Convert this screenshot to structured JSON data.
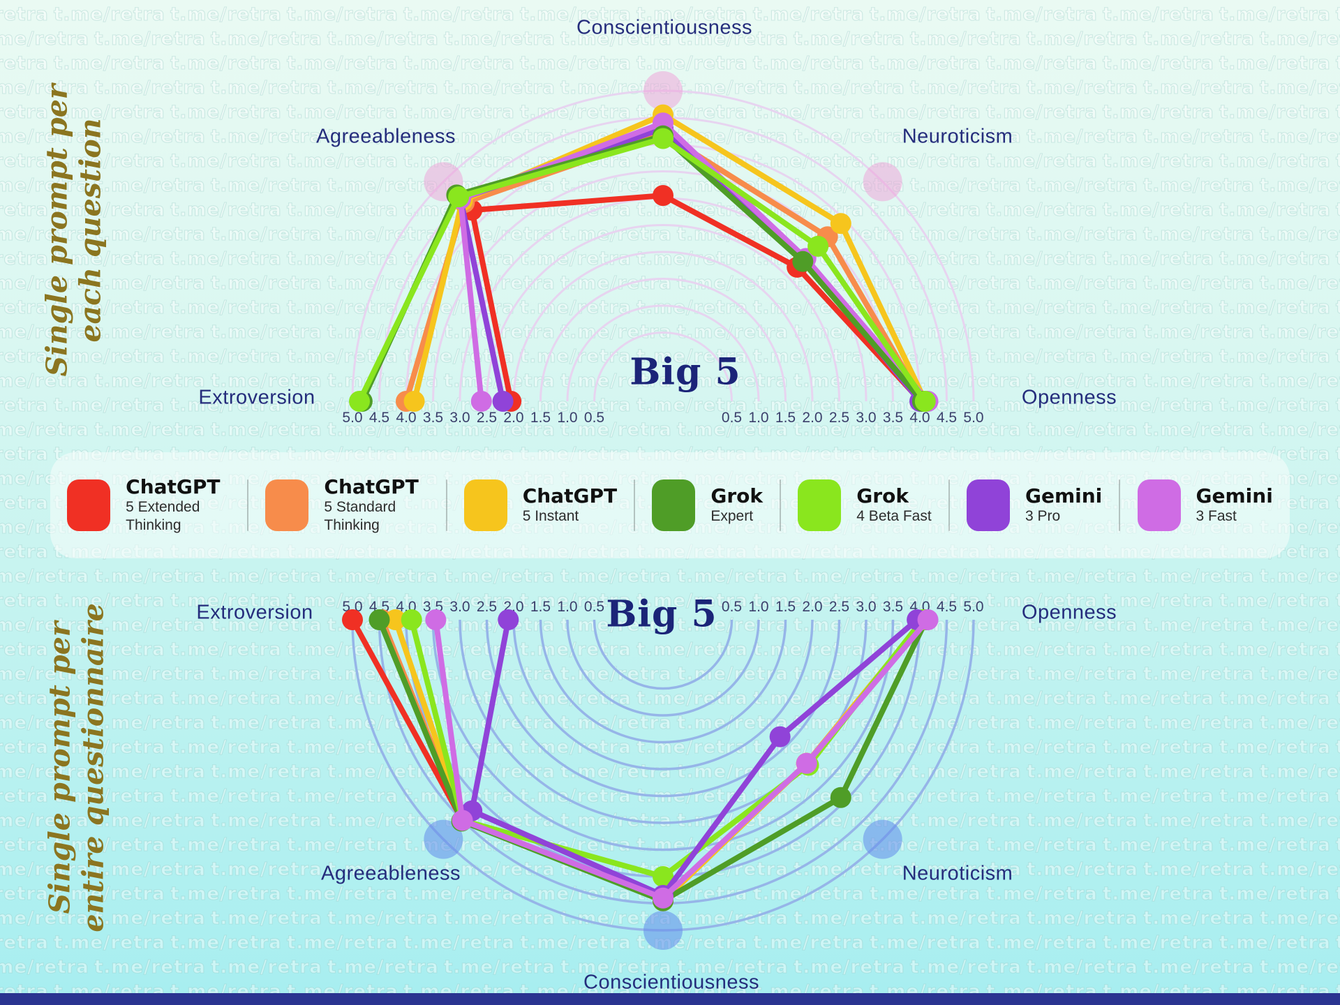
{
  "watermark": {
    "text": "t.me/retra"
  },
  "page": {
    "footer_color": "#2a3490"
  },
  "section_titles": {
    "top": {
      "line1": "Single prompt per",
      "line2": "each question"
    },
    "bottom": {
      "line1": "Single prompt per",
      "line2": "entire questionnaire"
    },
    "color": "#8b7520"
  },
  "legend": {
    "items": [
      {
        "brand": "ChatGPT",
        "variant": "5 Extended Thinking",
        "color": "#f03024"
      },
      {
        "brand": "ChatGPT",
        "variant": "5 Standard Thinking",
        "color": "#f78c4b"
      },
      {
        "brand": "ChatGPT",
        "variant": "5 Instant",
        "color": "#f6c51d"
      },
      {
        "brand": "Grok",
        "variant": "Expert",
        "color": "#4f9d27"
      },
      {
        "brand": "Grok",
        "variant": "4 Beta Fast",
        "color": "#8ae61e"
      },
      {
        "brand": "Gemini",
        "variant": "3 Pro",
        "color": "#9043d8"
      },
      {
        "brand": "Gemini",
        "variant": "3 Fast",
        "color": "#cf6ce4"
      }
    ]
  },
  "chart_data": [
    {
      "type": "radar-semicircle",
      "orientation": "up",
      "title": "Big 5",
      "section_label": "Single prompt per each question",
      "axes": [
        "Extroversion",
        "Agreeableness",
        "Conscientiousness",
        "Neuroticism",
        "Openness"
      ],
      "scale": {
        "min": 0,
        "max": 5,
        "step": 0.5
      },
      "grid_color": "#e7d4f0",
      "marker_color": "rgba(240,160,215,0.5)",
      "tick_color": "#3b3f6b",
      "draw_order": [
        0,
        1,
        2,
        5,
        6,
        3,
        4
      ],
      "series": [
        {
          "name": "ChatGPT 5 Extended Thinking",
          "color": "#f03024",
          "values": [
            2.05,
            4.25,
            3.05,
            2.75,
            4.02
          ]
        },
        {
          "name": "ChatGPT 5 Standard Thinking",
          "color": "#f78c4b",
          "values": [
            4.0,
            4.45,
            4.2,
            3.55,
            4.05
          ]
        },
        {
          "name": "ChatGPT 5 Instant",
          "color": "#f6c51d",
          "values": [
            3.85,
            4.5,
            4.55,
            3.9,
            4.1
          ]
        },
        {
          "name": "Grok Expert",
          "color": "#4f9d27",
          "values": [
            4.82,
            4.65,
            4.16,
            2.9,
            4.05
          ]
        },
        {
          "name": "Grok 4 Beta Fast",
          "color": "#8ae61e",
          "values": [
            4.87,
            4.6,
            4.11,
            3.3,
            4.1
          ]
        },
        {
          "name": "Gemini 3 Pro",
          "color": "#9043d8",
          "values": [
            2.2,
            4.55,
            4.3,
            2.95,
            4.0
          ]
        },
        {
          "name": "Gemini 3 Fast",
          "color": "#cf6ce4",
          "values": [
            2.6,
            4.55,
            4.4,
            2.98,
            4.15
          ]
        }
      ]
    },
    {
      "type": "radar-semicircle",
      "orientation": "down",
      "title": "Big 5",
      "section_label": "Single prompt per entire questionnaire",
      "axes": [
        "Extroversion",
        "Agreeableness",
        "Conscientiousness",
        "Neuroticism",
        "Openness"
      ],
      "scale": {
        "min": 0,
        "max": 5,
        "step": 0.5
      },
      "grid_color": "#96b5e8",
      "marker_color": "rgba(100,140,235,0.55)",
      "tick_color": "#3b3f6b",
      "draw_order": [
        0,
        1,
        2,
        3,
        4,
        5,
        6
      ],
      "series": [
        {
          "name": "ChatGPT 5 Extended Thinking",
          "color": "#f03024",
          "values": [
            5.0,
            4.5,
            4.45,
            3.0,
            4.08
          ]
        },
        {
          "name": "ChatGPT 5 Standard Thinking",
          "color": "#f78c4b",
          "values": [
            4.45,
            4.5,
            4.45,
            3.0,
            4.08
          ]
        },
        {
          "name": "ChatGPT 5 Instant",
          "color": "#f6c51d",
          "values": [
            4.2,
            4.48,
            4.45,
            3.0,
            4.08
          ]
        },
        {
          "name": "Grok Expert",
          "color": "#4f9d27",
          "values": [
            4.5,
            4.52,
            4.45,
            3.9,
            4.12
          ]
        },
        {
          "name": "Grok 4 Beta Fast",
          "color": "#8ae61e",
          "values": [
            3.9,
            4.5,
            4.0,
            3.05,
            4.05
          ]
        },
        {
          "name": "Gemini 3 Pro",
          "color": "#9043d8",
          "values": [
            2.1,
            4.25,
            4.35,
            2.3,
            3.95
          ]
        },
        {
          "name": "Gemini 3 Fast",
          "color": "#cf6ce4",
          "values": [
            3.45,
            4.5,
            4.4,
            3.0,
            4.15
          ]
        }
      ]
    }
  ]
}
